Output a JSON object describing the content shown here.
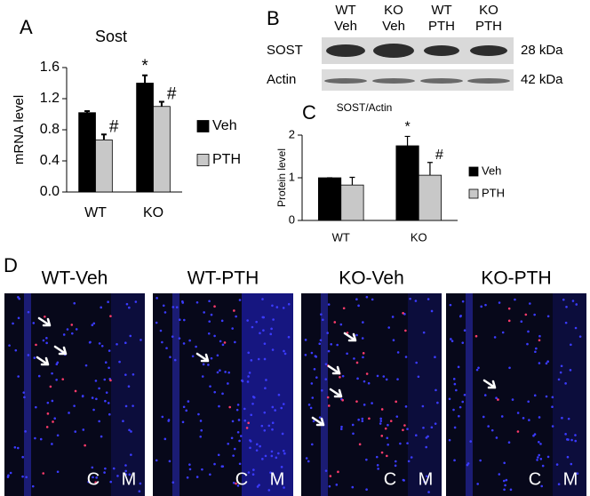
{
  "panel_labels": [
    "A",
    "B",
    "C",
    "D"
  ],
  "chart_data": [
    {
      "type": "bar",
      "title": "Sost",
      "y_label": "mRNA level",
      "categories": [
        "WT",
        "KO"
      ],
      "series": [
        {
          "name": "Veh",
          "color": "#000000",
          "values": [
            1.02,
            1.4
          ],
          "errors": [
            0.02,
            0.1
          ],
          "annotations": [
            null,
            "*"
          ]
        },
        {
          "name": "PTH",
          "color": "#c8c8c8",
          "values": [
            0.67,
            1.1
          ],
          "errors": [
            0.07,
            0.06
          ],
          "annotations": [
            "#",
            "#"
          ]
        }
      ],
      "ylim": [
        0,
        1.6
      ],
      "yticks": [
        {
          "value": 0,
          "label": "0.0"
        },
        0.4,
        0.8,
        1.2,
        1.6
      ],
      "grid": false,
      "legend": "right"
    },
    {
      "type": "bar",
      "title": "SOST/Actin",
      "y_label": "Protein level",
      "categories": [
        "WT",
        "KO"
      ],
      "series": [
        {
          "name": "Veh",
          "color": "#000000",
          "values": [
            1.0,
            1.75
          ],
          "errors": [
            0.0,
            0.22
          ],
          "annotations": [
            null,
            "*"
          ]
        },
        {
          "name": "PTH",
          "color": "#c8c8c8",
          "values": [
            0.83,
            1.06
          ],
          "errors": [
            0.18,
            0.3
          ],
          "annotations": [
            null,
            "#"
          ]
        }
      ],
      "ylim": [
        0,
        2
      ],
      "yticks": [
        0,
        1,
        2
      ],
      "grid": false,
      "legend": "right"
    }
  ],
  "blot": {
    "columns": [
      [
        "WT",
        "Veh"
      ],
      [
        "KO",
        "Veh"
      ],
      [
        "WT",
        "PTH"
      ],
      [
        "KO",
        "PTH"
      ]
    ],
    "rows": [
      {
        "protein": "SOST",
        "size": "28 kDa"
      },
      {
        "protein": "Actin",
        "size": "42 kDa"
      }
    ]
  },
  "micrographs": [
    {
      "title": "WT-Veh",
      "labels": [
        "C",
        "M"
      ]
    },
    {
      "title": "WT-PTH",
      "labels": [
        "C",
        "M"
      ]
    },
    {
      "title": "KO-Veh",
      "labels": [
        "C",
        "M"
      ]
    },
    {
      "title": "KO-PTH",
      "labels": [
        "C",
        "M"
      ]
    }
  ]
}
